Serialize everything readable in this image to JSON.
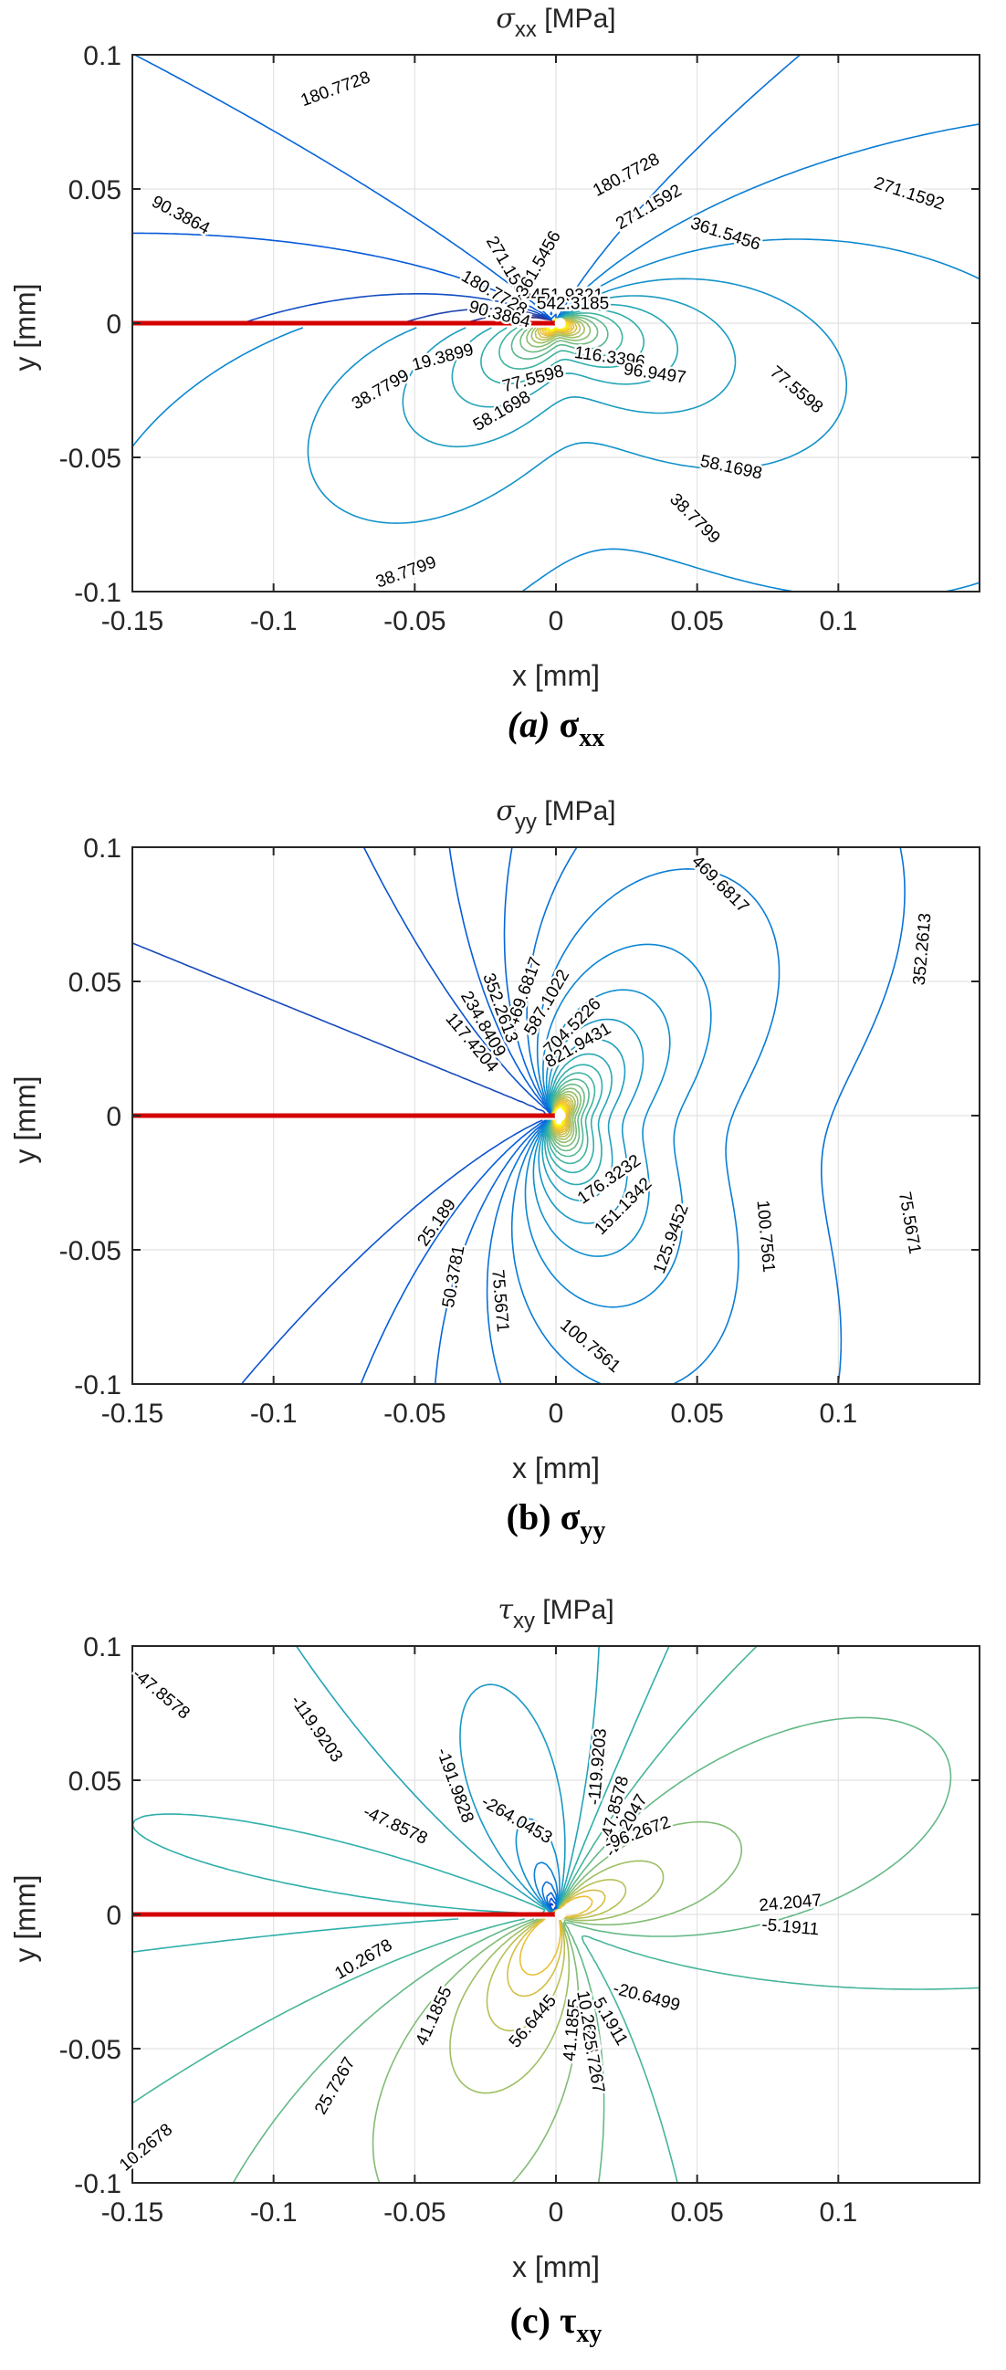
{
  "chart_data": [
    {
      "id": "a",
      "type": "contour",
      "title_symbol": "σ",
      "title_subscript": "xx",
      "title_unit": "[MPa]",
      "xlabel": "x [mm]",
      "ylabel": "y [mm]",
      "xlim": [
        -0.15,
        0.15
      ],
      "ylim": [
        -0.1,
        0.1
      ],
      "xticks": [
        "-0.15",
        "-0.1",
        "-0.05",
        "0",
        "0.05",
        "0.1"
      ],
      "yticks": [
        "-0.1",
        "-0.05",
        "0",
        "0.05",
        "0.1"
      ],
      "grid": true,
      "crack": {
        "x_start": -0.15,
        "x_end": 0,
        "y": 0,
        "color": "#d40000"
      },
      "caption_prefix": "(a)",
      "caption_symbol": "σ",
      "caption_subscript": "xx",
      "colormap": "parula",
      "contour_labels": [
        {
          "text": "180.7728",
          "x": -0.078,
          "y": 0.087,
          "angle": -20
        },
        {
          "text": "180.7728",
          "x": 0.025,
          "y": 0.055,
          "angle": -28
        },
        {
          "text": "271.1592",
          "x": 0.125,
          "y": 0.048,
          "angle": 18
        },
        {
          "text": "271.1592",
          "x": 0.033,
          "y": 0.043,
          "angle": -30
        },
        {
          "text": "361.5456",
          "x": 0.06,
          "y": 0.033,
          "angle": 18
        },
        {
          "text": "90.3864",
          "x": -0.133,
          "y": 0.04,
          "angle": 28
        },
        {
          "text": "271.1592",
          "x": -0.017,
          "y": 0.02,
          "angle": 60
        },
        {
          "text": "361.5456",
          "x": -0.006,
          "y": 0.022,
          "angle": -60
        },
        {
          "text": "180.7728",
          "x": -0.022,
          "y": 0.011,
          "angle": 30
        },
        {
          "text": "451.9321",
          "x": 0.004,
          "y": 0.01,
          "angle": 0
        },
        {
          "text": "542.3185",
          "x": 0.006,
          "y": 0.007,
          "angle": 0
        },
        {
          "text": "90.3864",
          "x": -0.02,
          "y": 0.003,
          "angle": 15
        },
        {
          "text": "19.3899",
          "x": -0.04,
          "y": -0.013,
          "angle": -15
        },
        {
          "text": "38.7799",
          "x": -0.062,
          "y": -0.025,
          "angle": -30
        },
        {
          "text": "116.3396",
          "x": 0.019,
          "y": -0.013,
          "angle": 8
        },
        {
          "text": "96.9497",
          "x": 0.035,
          "y": -0.019,
          "angle": 8
        },
        {
          "text": "77.5598",
          "x": -0.008,
          "y": -0.021,
          "angle": -15
        },
        {
          "text": "77.5598",
          "x": 0.085,
          "y": -0.025,
          "angle": 40
        },
        {
          "text": "58.1698",
          "x": -0.019,
          "y": -0.033,
          "angle": -30
        },
        {
          "text": "58.1698",
          "x": 0.062,
          "y": -0.054,
          "angle": 12
        },
        {
          "text": "38.7799",
          "x": 0.049,
          "y": -0.073,
          "angle": 45
        },
        {
          "text": "38.7799",
          "x": -0.053,
          "y": -0.093,
          "angle": -20
        }
      ]
    },
    {
      "id": "b",
      "type": "contour",
      "title_symbol": "σ",
      "title_subscript": "yy",
      "title_unit": "[MPa]",
      "xlabel": "x [mm]",
      "ylabel": "y [mm]",
      "xlim": [
        -0.15,
        0.15
      ],
      "ylim": [
        -0.1,
        0.1
      ],
      "xticks": [
        "-0.15",
        "-0.1",
        "-0.05",
        "0",
        "0.05",
        "0.1"
      ],
      "yticks": [
        "-0.1",
        "-0.05",
        "0",
        "0.05",
        "0.1"
      ],
      "grid": true,
      "crack": {
        "x_start": -0.15,
        "x_end": 0,
        "y": 0,
        "color": "#d40000"
      },
      "caption_prefix": "(b)",
      "caption_symbol": "σ",
      "caption_subscript": "yy",
      "colormap": "parula",
      "contour_labels": [
        {
          "text": "469.6817",
          "x": 0.058,
          "y": 0.086,
          "angle": 45
        },
        {
          "text": "352.2613",
          "x": 0.13,
          "y": 0.062,
          "angle": -85
        },
        {
          "text": "469.6817",
          "x": -0.011,
          "y": 0.046,
          "angle": -70
        },
        {
          "text": "587.1022",
          "x": -0.003,
          "y": 0.042,
          "angle": -60
        },
        {
          "text": "352.2613",
          "x": -0.02,
          "y": 0.04,
          "angle": 70
        },
        {
          "text": "704.5226",
          "x": 0.006,
          "y": 0.033,
          "angle": -45
        },
        {
          "text": "234.8409",
          "x": -0.026,
          "y": 0.034,
          "angle": 60
        },
        {
          "text": "821.9431",
          "x": 0.008,
          "y": 0.026,
          "angle": -30
        },
        {
          "text": "117.4204",
          "x": -0.03,
          "y": 0.027,
          "angle": 50
        },
        {
          "text": "176.3232",
          "x": 0.019,
          "y": -0.024,
          "angle": -35
        },
        {
          "text": "151.1342",
          "x": 0.024,
          "y": -0.034,
          "angle": -45
        },
        {
          "text": "125.9452",
          "x": 0.041,
          "y": -0.046,
          "angle": -70
        },
        {
          "text": "100.7561",
          "x": 0.074,
          "y": -0.045,
          "angle": 85
        },
        {
          "text": "75.5671",
          "x": 0.125,
          "y": -0.04,
          "angle": 80
        },
        {
          "text": "25.189",
          "x": -0.042,
          "y": -0.04,
          "angle": -55
        },
        {
          "text": "50.3781",
          "x": -0.036,
          "y": -0.06,
          "angle": -80
        },
        {
          "text": "75.5671",
          "x": -0.02,
          "y": -0.069,
          "angle": 85
        },
        {
          "text": "100.7561",
          "x": 0.012,
          "y": -0.086,
          "angle": 40
        }
      ]
    },
    {
      "id": "c",
      "type": "contour",
      "title_symbol": "τ",
      "title_subscript": "xy",
      "title_unit": "[MPa]",
      "xlabel": "x [mm]",
      "ylabel": "y [mm]",
      "xlim": [
        -0.15,
        0.15
      ],
      "ylim": [
        -0.1,
        0.1
      ],
      "xticks": [
        "-0.15",
        "-0.1",
        "-0.05",
        "0",
        "0.05",
        "0.1"
      ],
      "yticks": [
        "-0.1",
        "-0.05",
        "0",
        "0.05",
        "0.1"
      ],
      "grid": true,
      "crack": {
        "x_start": -0.15,
        "x_end": 0,
        "y": 0,
        "color": "#d40000"
      },
      "caption_prefix": "(c)",
      "caption_symbol": "τ",
      "caption_subscript": "xy",
      "colormap": "parula",
      "contour_labels": [
        {
          "text": "-47.8578",
          "x": -0.14,
          "y": 0.082,
          "angle": 40
        },
        {
          "text": "-119.9203",
          "x": -0.085,
          "y": 0.069,
          "angle": 55
        },
        {
          "text": "-191.9828",
          "x": -0.036,
          "y": 0.048,
          "angle": 70
        },
        {
          "text": "-264.0453",
          "x": -0.014,
          "y": 0.035,
          "angle": 30
        },
        {
          "text": "-47.8578",
          "x": -0.057,
          "y": 0.033,
          "angle": 25
        },
        {
          "text": "-119.9203",
          "x": 0.015,
          "y": 0.055,
          "angle": -85
        },
        {
          "text": "-47.8578",
          "x": 0.021,
          "y": 0.039,
          "angle": -75
        },
        {
          "text": "-24.2047",
          "x": 0.025,
          "y": 0.033,
          "angle": -60
        },
        {
          "text": "-96.2672",
          "x": 0.029,
          "y": 0.03,
          "angle": -20
        },
        {
          "text": "24.2047",
          "x": 0.083,
          "y": 0.004,
          "angle": -5
        },
        {
          "text": "-5.1911",
          "x": 0.083,
          "y": -0.005,
          "angle": 5
        },
        {
          "text": "10.2678",
          "x": -0.068,
          "y": -0.017,
          "angle": -30
        },
        {
          "text": "41.1855",
          "x": -0.043,
          "y": -0.038,
          "angle": -65
        },
        {
          "text": "56.6445",
          "x": -0.008,
          "y": -0.04,
          "angle": -50
        },
        {
          "text": "-20.6499",
          "x": 0.032,
          "y": -0.031,
          "angle": 15
        },
        {
          "text": "41.1855",
          "x": 0.006,
          "y": -0.043,
          "angle": -85
        },
        {
          "text": "10.2678",
          "x": 0.011,
          "y": -0.04,
          "angle": 80
        },
        {
          "text": "5.1911",
          "x": 0.019,
          "y": -0.04,
          "angle": 60
        },
        {
          "text": "25.7267",
          "x": 0.013,
          "y": -0.055,
          "angle": 80
        },
        {
          "text": "25.7267",
          "x": -0.078,
          "y": -0.064,
          "angle": -60
        },
        {
          "text": "10.2678",
          "x": -0.145,
          "y": -0.087,
          "angle": -40
        }
      ]
    }
  ]
}
